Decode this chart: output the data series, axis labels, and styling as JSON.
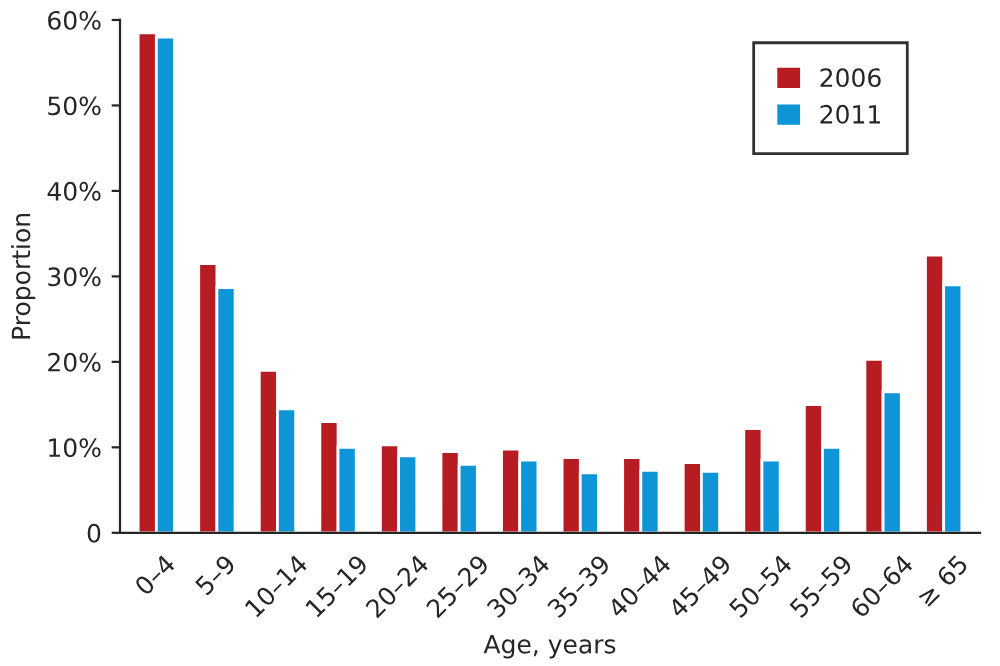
{
  "chart_data": {
    "type": "bar",
    "xlabel": "Age, years",
    "ylabel": "Proportion",
    "categories": [
      "0–4",
      "5–9",
      "10–14",
      "15–19",
      "20–24",
      "25–29",
      "30–34",
      "35–39",
      "40–44",
      "45–49",
      "50–54",
      "55–59",
      "60–64",
      "≥ 65"
    ],
    "series": [
      {
        "name": "2006",
        "color": "#b71c22",
        "values": [
          58.5,
          31.5,
          19,
          13,
          10.3,
          9.5,
          9.8,
          8.8,
          8.8,
          8.2,
          12.2,
          15,
          20.3,
          32.5
        ]
      },
      {
        "name": "2011",
        "color": "#0d95d8",
        "values": [
          58,
          28.7,
          14.5,
          10,
          9,
          8,
          8.5,
          7,
          7.3,
          7.2,
          8.5,
          10,
          16.5,
          29
        ]
      }
    ],
    "ylim": [
      0,
      60
    ],
    "yticks": [
      {
        "value": 0,
        "label": "0"
      },
      {
        "value": 10,
        "label": "10%"
      },
      {
        "value": 20,
        "label": "20%"
      },
      {
        "value": 30,
        "label": "30%"
      },
      {
        "value": 40,
        "label": "40%"
      },
      {
        "value": 50,
        "label": "50%"
      },
      {
        "value": 60,
        "label": "60%"
      }
    ],
    "grid": false,
    "legend": "top right"
  }
}
